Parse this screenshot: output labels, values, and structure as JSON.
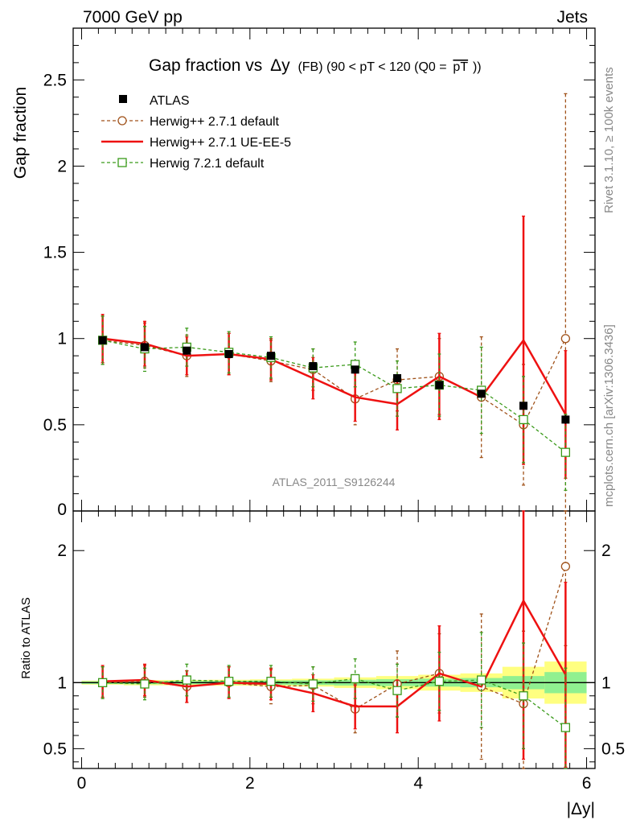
{
  "header": {
    "left": "7000 GeV pp",
    "right": "Jets"
  },
  "side_labels": {
    "rivet": "Rivet 3.1.10, ≥ 100k events",
    "mcplots": "mcplots.cern.ch [arXiv:1306.3436]"
  },
  "colors": {
    "atlas": "#000000",
    "herwigpp_default": "#a0521a",
    "herwigpp_ueee5": "#ee1111",
    "herwig7": "#3a9a1a",
    "band_inner": "#90f090",
    "band_outer": "#ffff80"
  },
  "chart_data": [
    {
      "type": "scatter",
      "title_main": "Gap fraction vs",
      "title_delta": "Δy",
      "title_sub": "(FB)  (90 < pT < 120 (Q0 =",
      "title_q0": "pT",
      "title_close": "))",
      "ylabel": "Gap fraction",
      "analysis_label": "ATLAS_2011_S9126244",
      "xlim": [
        -0.1,
        6.1
      ],
      "ylim": [
        0,
        2.8
      ],
      "yticks": [
        0.5,
        1,
        1.5,
        2,
        2.5
      ],
      "ytick_labels": [
        "0.5",
        "1",
        "1.5",
        "2",
        "2.5"
      ],
      "bottom_tick_label": "0",
      "x": [
        0.25,
        0.75,
        1.25,
        1.75,
        2.25,
        2.75,
        3.25,
        3.75,
        4.25,
        4.75,
        5.25,
        5.75
      ],
      "bin_edges": [
        0,
        0.5,
        1,
        1.5,
        2,
        2.5,
        3,
        3.5,
        4,
        4.5,
        5,
        5.5,
        6
      ],
      "legend": [
        "ATLAS",
        "Herwig++ 2.7.1 default",
        "Herwig++ 2.7.1 UE-EE-5",
        "Herwig 7.2.1 default"
      ],
      "series": [
        {
          "name": "ATLAS",
          "values": [
            0.99,
            0.95,
            0.93,
            0.91,
            0.9,
            0.84,
            0.82,
            0.77,
            0.73,
            0.68,
            0.61,
            0.53
          ],
          "errors": [
            0.01,
            0.01,
            0.01,
            0.01,
            0.01,
            0.01,
            0.015,
            0.015,
            0.015,
            0.02,
            0.02,
            0.025
          ]
        },
        {
          "name": "Herwig++ 2.7.1 default",
          "values": [
            0.99,
            0.96,
            0.9,
            0.91,
            0.87,
            0.82,
            0.65,
            0.76,
            0.78,
            0.66,
            0.5,
            1.0
          ],
          "errors": [
            0.14,
            0.13,
            0.12,
            0.12,
            0.12,
            0.12,
            0.15,
            0.18,
            0.22,
            0.35,
            0.35,
            1.42
          ]
        },
        {
          "name": "Herwig++ 2.7.1 UE-EE-5",
          "values": [
            1.0,
            0.97,
            0.9,
            0.91,
            0.88,
            0.77,
            0.66,
            0.62,
            0.78,
            0.66,
            0.99,
            0.56
          ],
          "errors": [
            0.14,
            0.13,
            0.11,
            0.12,
            0.12,
            0.12,
            0.14,
            0.15,
            0.25,
            0.0,
            0.72,
            0.37
          ]
        },
        {
          "name": "Herwig 7.2.1 default",
          "values": [
            0.99,
            0.94,
            0.95,
            0.92,
            0.89,
            0.83,
            0.85,
            0.71,
            0.73,
            0.7,
            0.53,
            0.34
          ],
          "errors": [
            0.14,
            0.13,
            0.11,
            0.12,
            0.12,
            0.11,
            0.13,
            0.16,
            0.18,
            0.25,
            0.25,
            0.22
          ]
        }
      ]
    },
    {
      "type": "scatter",
      "ylabel": "Ratio to ATLAS",
      "xlabel": "|Δy|",
      "xlim": [
        -0.1,
        6.1
      ],
      "ylim": [
        0.35,
        2.3
      ],
      "yticks": [
        0.5,
        1,
        2
      ],
      "ytick_labels": [
        "0.5",
        "1",
        "2"
      ],
      "xticks": [
        0,
        2,
        4,
        6
      ],
      "xtick_labels": [
        "0",
        "2",
        "4",
        "6"
      ],
      "x": [
        0.25,
        0.75,
        1.25,
        1.75,
        2.25,
        2.75,
        3.25,
        3.75,
        4.25,
        4.75,
        5.25,
        5.75
      ],
      "bin_edges": [
        0,
        0.5,
        1,
        1.5,
        2,
        2.5,
        3,
        3.5,
        4,
        4.5,
        5,
        5.5,
        6
      ],
      "band_inner": [
        0.01,
        0.012,
        0.012,
        0.014,
        0.016,
        0.018,
        0.022,
        0.026,
        0.03,
        0.035,
        0.05,
        0.08
      ],
      "band_outer": [
        0.015,
        0.02,
        0.02,
        0.022,
        0.025,
        0.03,
        0.04,
        0.05,
        0.06,
        0.07,
        0.12,
        0.16
      ],
      "series": [
        {
          "name": "Herwig++ 2.7.1 default",
          "values": [
            1.0,
            1.01,
            0.97,
            1.0,
            0.97,
            0.98,
            0.8,
            0.99,
            1.07,
            0.97,
            0.84,
            1.88
          ],
          "errors": [
            0.12,
            0.12,
            0.12,
            0.12,
            0.13,
            0.14,
            0.18,
            0.25,
            0.3,
            0.55,
            0.55,
            0.6
          ]
        },
        {
          "name": "Herwig++ 2.7.1 UE-EE-5",
          "values": [
            1.01,
            1.02,
            0.97,
            1.0,
            0.99,
            0.92,
            0.82,
            0.82,
            1.07,
            0.97,
            1.62,
            1.06
          ],
          "errors": [
            0.12,
            0.12,
            0.12,
            0.12,
            0.12,
            0.14,
            0.17,
            0.2,
            0.36,
            0.0,
            1.2,
            0.7
          ]
        },
        {
          "name": "Herwig 7.2.1 default",
          "values": [
            1.0,
            0.99,
            1.02,
            1.01,
            1.01,
            0.99,
            1.03,
            0.94,
            1.01,
            1.02,
            0.9,
            0.66
          ],
          "errors": [
            0.12,
            0.12,
            0.12,
            0.12,
            0.12,
            0.13,
            0.15,
            0.2,
            0.22,
            0.36,
            0.4,
            0.45
          ]
        }
      ]
    }
  ]
}
